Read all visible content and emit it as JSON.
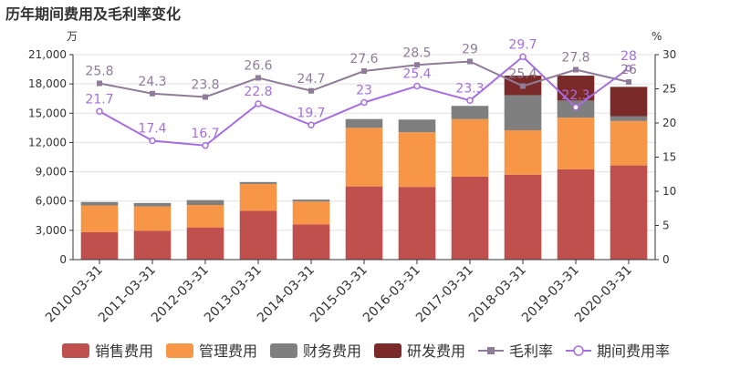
{
  "chart_data": {
    "type": "bar+line",
    "title": "历年期间费用及毛利率变化",
    "left_axis": {
      "unit": "万",
      "ylim": [
        0,
        21000
      ],
      "ticks": [
        "0",
        "3,000",
        "6,000",
        "9,000",
        "12,000",
        "15,000",
        "18,000",
        "21,000"
      ],
      "tick_values": [
        0,
        3000,
        6000,
        9000,
        12000,
        15000,
        18000,
        21000
      ]
    },
    "right_axis": {
      "unit": "%",
      "ylim": [
        0,
        30
      ],
      "ticks": [
        "0",
        "5",
        "10",
        "15",
        "20",
        "25",
        "30"
      ],
      "tick_values": [
        0,
        5,
        10,
        15,
        20,
        25,
        30
      ]
    },
    "categories": [
      "2010-03-31",
      "2011-03-31",
      "2012-03-31",
      "2013-03-31",
      "2014-03-31",
      "2015-03-31",
      "2016-03-31",
      "2017-03-31",
      "2018-03-31",
      "2019-03-31",
      "2020-03-31"
    ],
    "bar_series": [
      {
        "name": "销售费用",
        "color": "#c0504d",
        "values": [
          2800,
          2950,
          3300,
          5000,
          3600,
          7500,
          7450,
          8500,
          8700,
          9250,
          9650
        ]
      },
      {
        "name": "管理费用",
        "color": "#f79646",
        "values": [
          2750,
          2500,
          2300,
          2750,
          2350,
          6000,
          5600,
          5900,
          4550,
          5300,
          4550
        ]
      },
      {
        "name": "财务费用",
        "color": "#7f7f7f",
        "values": [
          350,
          350,
          500,
          200,
          200,
          900,
          1300,
          1350,
          3600,
          1750,
          500
        ]
      },
      {
        "name": "研发费用",
        "color": "#7b2a2a",
        "values": [
          0,
          0,
          0,
          0,
          0,
          0,
          0,
          0,
          2000,
          2550,
          3000
        ]
      }
    ],
    "line_series": [
      {
        "name": "毛利率",
        "color": "#8e7c99",
        "marker": "square",
        "values": [
          25.8,
          24.3,
          23.8,
          26.6,
          24.7,
          27.6,
          28.5,
          29,
          25.4,
          27.8,
          26
        ],
        "labels": [
          "25.8",
          "24.3",
          "23.8",
          "26.6",
          "24.7",
          "27.6",
          "28.5",
          "29",
          "25.4",
          "27.8",
          "26"
        ]
      },
      {
        "name": "期间费用率",
        "color": "#a66ee0",
        "marker": "circle",
        "values": [
          21.7,
          17.4,
          16.7,
          22.8,
          19.7,
          23,
          25.4,
          23.3,
          29.7,
          22.3,
          28
        ],
        "labels": [
          "21.7",
          "17.4",
          "16.7",
          "22.8",
          "19.7",
          "23",
          "25.4",
          "23.3",
          "29.7",
          "22.3",
          "28"
        ]
      }
    ],
    "grid": true,
    "legend_position": "bottom"
  }
}
